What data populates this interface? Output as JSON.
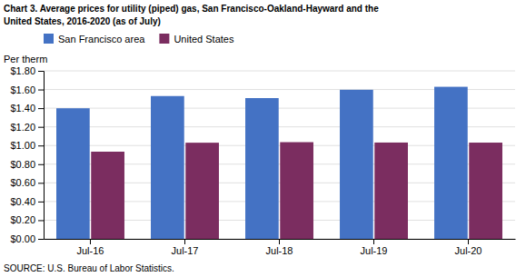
{
  "chart_data": {
    "type": "bar",
    "title": "Chart 3. Average prices for utility (piped) gas, San Francisco-Oakland-Hayward and the",
    "subtitle": "United States, 2016-2020  (as of July)",
    "y_label": "Per therm",
    "annotations": [
      "SOURCE: U.S. Bureau of Labor Statistics."
    ],
    "categories": [
      "Jul-16",
      "Jul-17",
      "Jul-18",
      "Jul-19",
      "Jul-20"
    ],
    "series": [
      {
        "name": "San Francisco area",
        "color": "#4472C4",
        "values": [
          1.399,
          1.53,
          1.508,
          1.597,
          1.629
        ]
      },
      {
        "name": "United States",
        "color": "#7B2D60",
        "values": [
          0.934,
          1.03,
          1.036,
          1.032,
          1.031
        ]
      }
    ],
    "ylim": [
      0,
      1.8
    ],
    "yticks": [
      {
        "value": 0,
        "label": "$0.00"
      },
      {
        "value": 0.2,
        "label": "$0.20"
      },
      {
        "value": 0.4,
        "label": "$0.40"
      },
      {
        "value": 0.6,
        "label": "$0.60"
      },
      {
        "value": 0.8,
        "label": "$0.80"
      },
      {
        "value": 1.0,
        "label": "$1.00"
      },
      {
        "value": 1.2,
        "label": "$1.20"
      },
      {
        "value": 1.4,
        "label": "$1.40"
      },
      {
        "value": 1.6,
        "label": "$1.60"
      },
      {
        "value": 1.8,
        "label": "$1.80"
      }
    ],
    "grid": true,
    "legend": "top-left"
  }
}
